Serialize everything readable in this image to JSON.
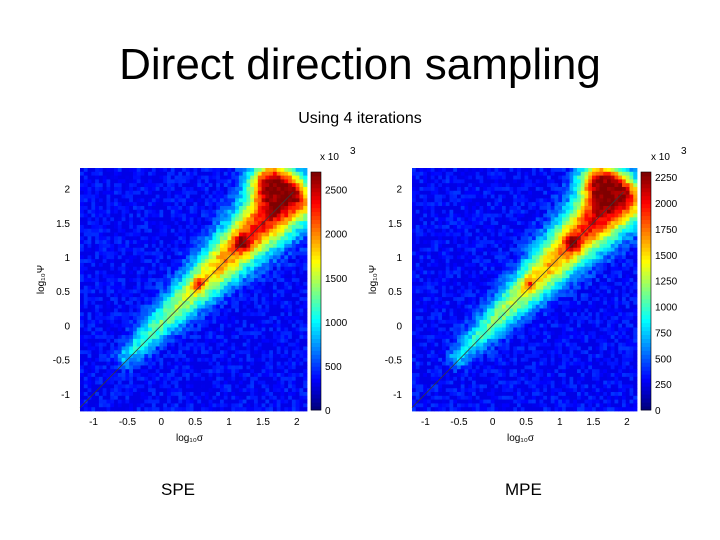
{
  "slide": {
    "title": "Direct direction sampling",
    "subtitle": "Using 4 iterations"
  },
  "chart_data": [
    {
      "type": "heatmap",
      "caption": "SPE",
      "xlabel": "log₁₀σ",
      "ylabel": "log₁₀Ψ",
      "xlim": [
        -1.2,
        2.15
      ],
      "ylim": [
        -1.25,
        2.3
      ],
      "xticks": [
        -1,
        -0.5,
        0,
        0.5,
        1,
        1.5,
        2
      ],
      "yticks": [
        -1,
        -0.5,
        0,
        0.5,
        1,
        1.5,
        2
      ],
      "colorbar": {
        "multiplier": "x 10",
        "exponent": "3",
        "range": [
          0,
          2700
        ],
        "ticks": [
          0,
          500,
          1000,
          1500,
          2000,
          2500
        ]
      },
      "diagonal_line": [
        [
          -1.2,
          -1.2
        ],
        [
          1.95,
          1.95
        ]
      ],
      "density_ridge": {
        "start": [
          -0.5,
          -0.45
        ],
        "end": [
          1.9,
          1.9
        ],
        "peak_density": 2650
      }
    },
    {
      "type": "heatmap",
      "caption": "MPE",
      "xlabel": "log₁₀σ",
      "ylabel": "log₁₀Ψ",
      "xlim": [
        -1.2,
        2.15
      ],
      "ylim": [
        -1.25,
        2.3
      ],
      "xticks": [
        -1,
        -0.5,
        0,
        0.5,
        1,
        1.5,
        2
      ],
      "yticks": [
        -1,
        -0.5,
        0,
        0.5,
        1,
        1.5,
        2
      ],
      "colorbar": {
        "multiplier": "x 10",
        "exponent": "3",
        "range": [
          0,
          2300
        ],
        "ticks": [
          0,
          250,
          500,
          750,
          1000,
          1250,
          1500,
          1750,
          2000,
          2250
        ]
      },
      "diagonal_line": [
        [
          -1.2,
          -1.2
        ],
        [
          1.95,
          1.95
        ]
      ],
      "density_ridge": {
        "start": [
          -0.5,
          -0.45
        ],
        "end": [
          1.9,
          1.9
        ],
        "peak_density": 2300
      }
    }
  ]
}
